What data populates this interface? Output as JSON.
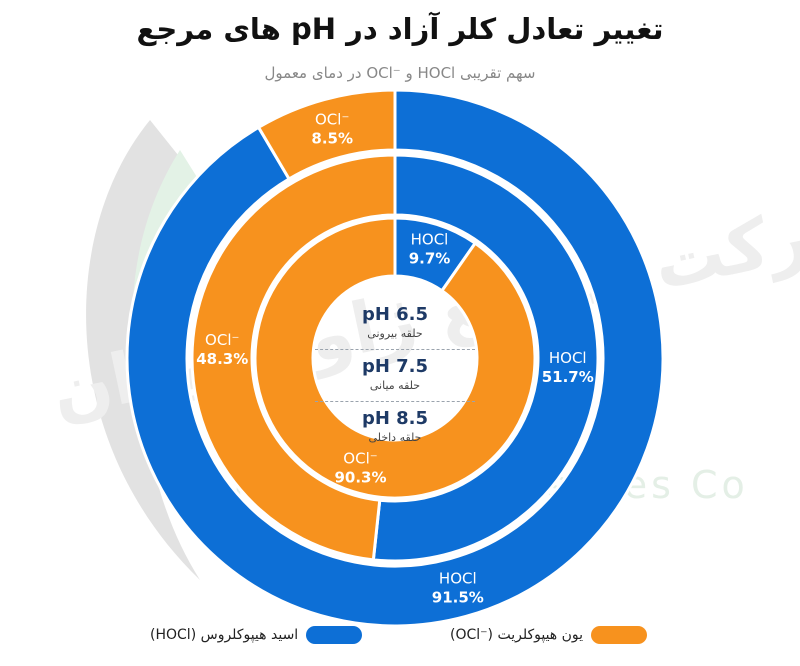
{
  "title": "تغییر تعادل کلر آزاد در pH های مرجع",
  "subtitle": "سهم تقریبی HOCl و ⁻OCl در دمای معمول",
  "watermark": {
    "text_latin": "Iran Zhavel Industries Co",
    "text_fa": "شرکت صنایع ژاول ایران"
  },
  "colors": {
    "hocl": "#0d6fd6",
    "ocl": "#f7921e",
    "separator": "#ffffff"
  },
  "chart_data": {
    "type": "pie",
    "variant": "nested-donut",
    "categories": [
      "HOCl",
      "OCl⁻"
    ],
    "rings": [
      {
        "position": "outer",
        "ph_label": "pH 6.5",
        "ring_label": "حلقه بیرونی",
        "values": [
          91.5,
          8.5
        ],
        "labels": [
          "91.5%",
          "8.5%"
        ]
      },
      {
        "position": "middle",
        "ph_label": "pH 7.5",
        "ring_label": "حلقه میانی",
        "values": [
          51.7,
          48.3
        ],
        "labels": [
          "51.7%",
          "48.3%"
        ]
      },
      {
        "position": "inner",
        "ph_label": "pH 8.5",
        "ring_label": "حلقه داخلی",
        "values": [
          9.7,
          90.3
        ],
        "labels": [
          "9.7%",
          "90.3%"
        ]
      }
    ],
    "legend": [
      {
        "series": "HOCl",
        "label": "اسید هیپوکلروس (HOCl)",
        "color_key": "hocl"
      },
      {
        "series": "OCl⁻",
        "label": "یون هیپوکلریت (⁻OCl)",
        "color_key": "ocl"
      }
    ],
    "legend_placement": "bottom"
  }
}
